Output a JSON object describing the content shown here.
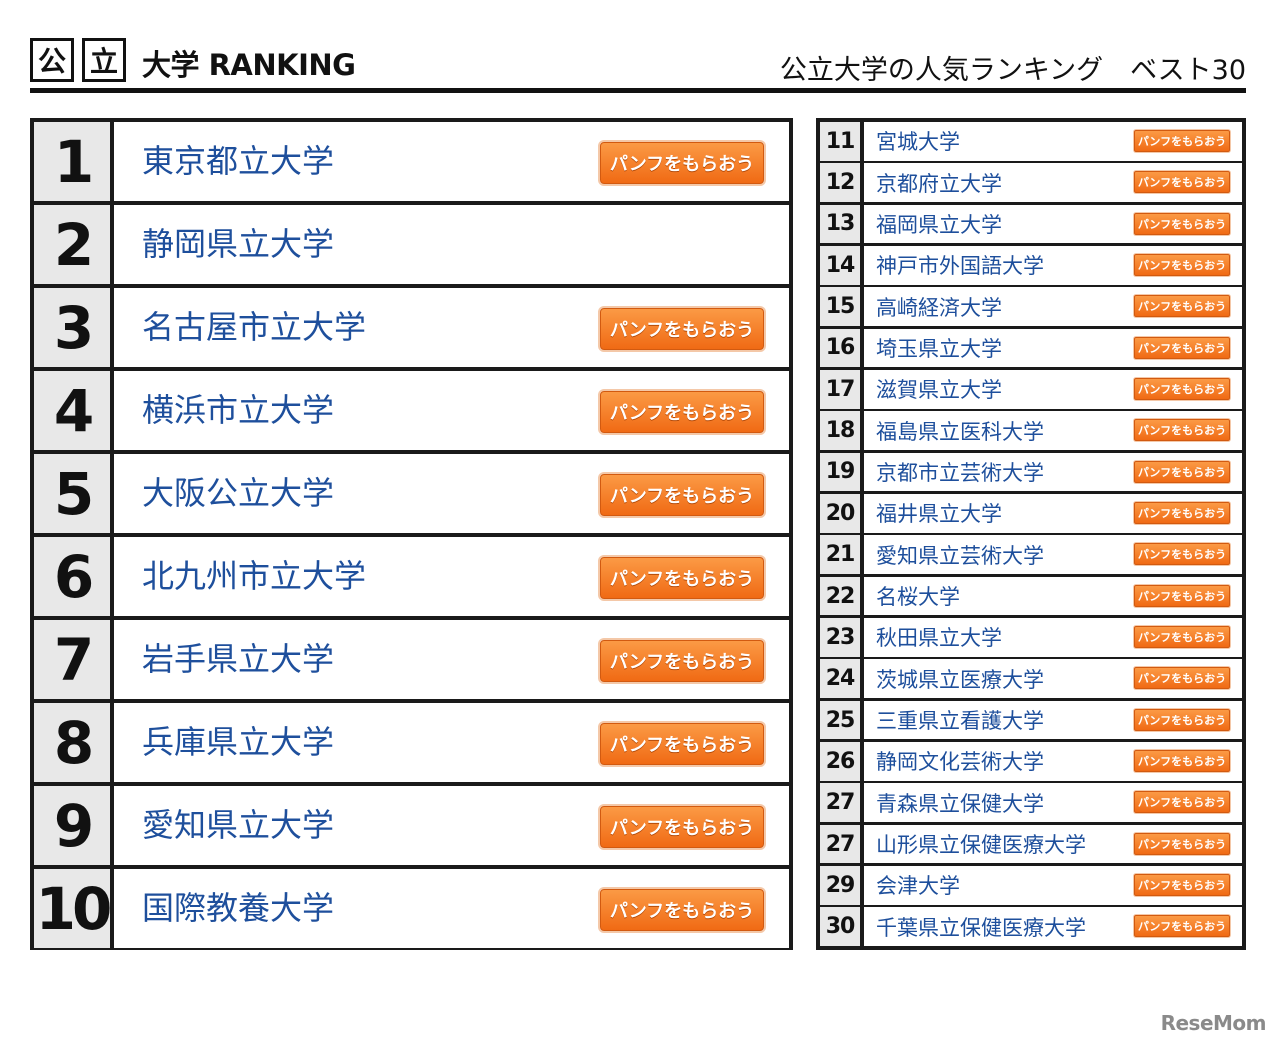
{
  "header": {
    "kanji1": "公",
    "kanji2": "立",
    "logo_text": "大学 RANKING",
    "subtitle": "公立大学の人気ランキング　ベスト30"
  },
  "button_label": "パンフをもらおう",
  "colors": {
    "accent": "#f47a22",
    "name_text": "#1e4f9c",
    "rank_bg": "#e8e8e8",
    "border": "#1a1a1a"
  },
  "top_rankings": [
    {
      "rank": "1",
      "name": "東京都立大学",
      "has_button": true
    },
    {
      "rank": "2",
      "name": "静岡県立大学",
      "has_button": false
    },
    {
      "rank": "3",
      "name": "名古屋市立大学",
      "has_button": true
    },
    {
      "rank": "4",
      "name": "横浜市立大学",
      "has_button": true
    },
    {
      "rank": "5",
      "name": "大阪公立大学",
      "has_button": true
    },
    {
      "rank": "6",
      "name": "北九州市立大学",
      "has_button": true
    },
    {
      "rank": "7",
      "name": "岩手県立大学",
      "has_button": true
    },
    {
      "rank": "8",
      "name": "兵庫県立大学",
      "has_button": true
    },
    {
      "rank": "9",
      "name": "愛知県立大学",
      "has_button": true
    },
    {
      "rank": "10",
      "name": "国際教養大学",
      "has_button": true
    }
  ],
  "more_rankings": [
    {
      "rank": "11",
      "name": "宮城大学"
    },
    {
      "rank": "12",
      "name": "京都府立大学"
    },
    {
      "rank": "13",
      "name": "福岡県立大学"
    },
    {
      "rank": "14",
      "name": "神戸市外国語大学"
    },
    {
      "rank": "15",
      "name": "高崎経済大学"
    },
    {
      "rank": "16",
      "name": "埼玉県立大学"
    },
    {
      "rank": "17",
      "name": "滋賀県立大学"
    },
    {
      "rank": "18",
      "name": "福島県立医科大学"
    },
    {
      "rank": "19",
      "name": "京都市立芸術大学"
    },
    {
      "rank": "20",
      "name": "福井県立大学"
    },
    {
      "rank": "21",
      "name": "愛知県立芸術大学"
    },
    {
      "rank": "22",
      "name": "名桜大学"
    },
    {
      "rank": "23",
      "name": "秋田県立大学"
    },
    {
      "rank": "24",
      "name": "茨城県立医療大学"
    },
    {
      "rank": "25",
      "name": "三重県立看護大学"
    },
    {
      "rank": "26",
      "name": "静岡文化芸術大学"
    },
    {
      "rank": "27",
      "name": "青森県立保健大学"
    },
    {
      "rank": "27",
      "name": "山形県立保健医療大学"
    },
    {
      "rank": "29",
      "name": "会津大学"
    },
    {
      "rank": "30",
      "name": "千葉県立保健医療大学"
    }
  ],
  "watermark": "ReseMom"
}
